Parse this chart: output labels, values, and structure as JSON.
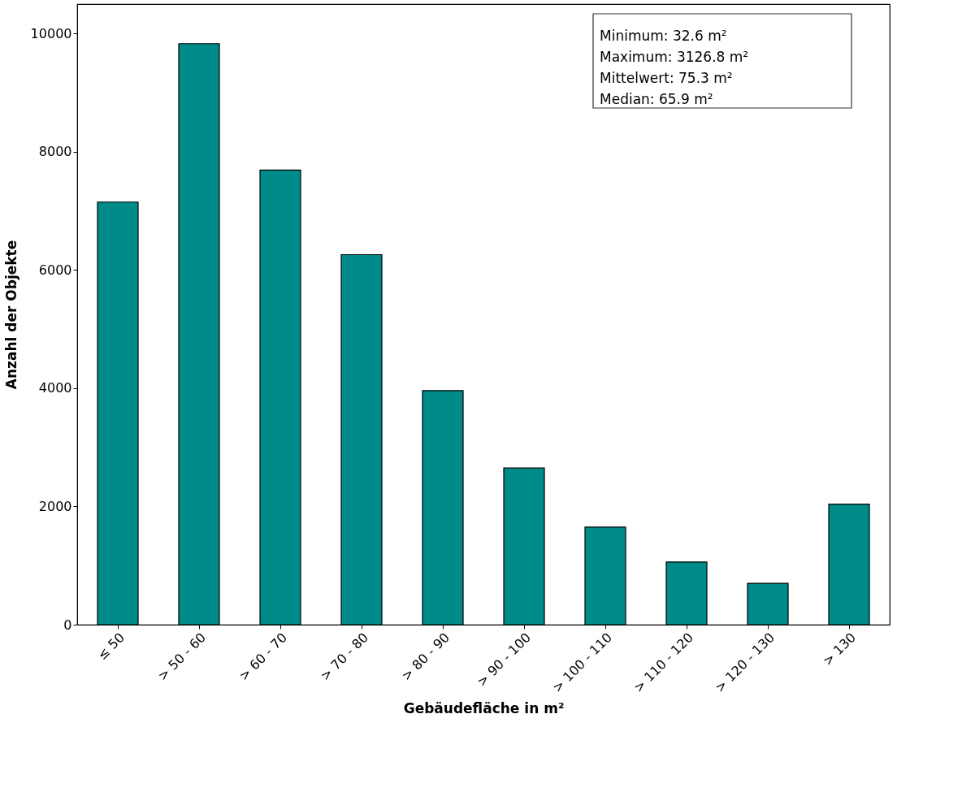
{
  "chart_data": {
    "type": "bar",
    "xlabel": "Gebäudefläche in m²",
    "ylabel": "Anzahl der Objekte",
    "categories": [
      "≤ 50",
      "> 50 - 60",
      "> 60 - 70",
      "> 70 - 80",
      "> 80 - 90",
      "> 90 - 100",
      "> 100 - 110",
      "> 110 - 120",
      "> 120 - 130",
      "> 130"
    ],
    "values": [
      7150,
      9830,
      7690,
      6260,
      3960,
      2650,
      1650,
      1060,
      700,
      2040
    ],
    "color": "#008b8b",
    "ylim": [
      0,
      10500
    ],
    "yticks": [
      0,
      2000,
      4000,
      6000,
      8000,
      10000
    ],
    "grid": false,
    "annotations": [
      "Minimum: 32.6 m²",
      "Maximum: 3126.8 m²",
      "Mittelwert: 75.3 m²",
      "Median: 65.9 m²"
    ]
  }
}
